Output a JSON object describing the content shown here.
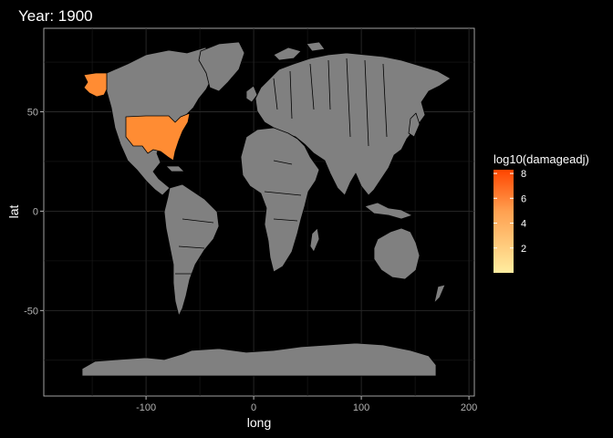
{
  "title": "Year: 1900",
  "colors": {
    "background": "#000000",
    "no_data_fill": "#808080",
    "scale_low": "#ffeda0",
    "scale_high": "#ff4500"
  },
  "chart_data": {
    "type": "choropleth",
    "title": "Year: 1900",
    "xlabel": "long",
    "ylabel": "lat",
    "xlim": [
      -195,
      205
    ],
    "ylim": [
      -93,
      92
    ],
    "x_ticks": [
      -100,
      0,
      100,
      200
    ],
    "x_tick_labels": [
      "-100",
      "0",
      "100",
      "200"
    ],
    "y_ticks": [
      -50,
      0,
      50
    ],
    "y_tick_labels": [
      "-50",
      "0",
      "50"
    ],
    "grid": true,
    "legend": {
      "title": "log10(damageadj)",
      "placement": "right",
      "range": [
        0,
        8.3
      ],
      "breaks": [
        2,
        4,
        6,
        8
      ],
      "break_labels": [
        "2",
        "4",
        "6",
        "8"
      ]
    },
    "regions": [
      {
        "name": "USA",
        "value": 7.3,
        "color": "#ff8c33"
      }
    ]
  }
}
